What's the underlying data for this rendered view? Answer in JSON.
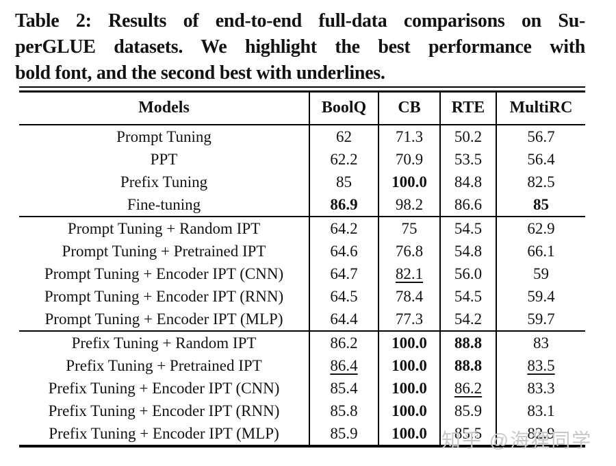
{
  "caption": {
    "lines": [
      "Table 2: Results of end-to-end full-data comparisons on Su-",
      "perGLUE datasets. We highlight the best performance with",
      "bold font, and the second best with underlines."
    ]
  },
  "table": {
    "columns": [
      "Models",
      "BoolQ",
      "CB",
      "RTE",
      "MultiRC"
    ],
    "groups": [
      {
        "rows": [
          {
            "model": "Prompt Tuning",
            "values": [
              {
                "text": "62",
                "style": "plain"
              },
              {
                "text": "71.3",
                "style": "plain"
              },
              {
                "text": "50.2",
                "style": "plain"
              },
              {
                "text": "56.7",
                "style": "plain"
              }
            ]
          },
          {
            "model": "PPT",
            "values": [
              {
                "text": "62.2",
                "style": "plain"
              },
              {
                "text": "70.9",
                "style": "plain"
              },
              {
                "text": "53.5",
                "style": "plain"
              },
              {
                "text": "56.4",
                "style": "plain"
              }
            ]
          },
          {
            "model": "Prefix Tuning",
            "values": [
              {
                "text": "85",
                "style": "plain"
              },
              {
                "text": "100.0",
                "style": "bold"
              },
              {
                "text": "84.8",
                "style": "plain"
              },
              {
                "text": "82.5",
                "style": "plain"
              }
            ]
          },
          {
            "model": "Fine-tuning",
            "values": [
              {
                "text": "86.9",
                "style": "bold"
              },
              {
                "text": "98.2",
                "style": "plain"
              },
              {
                "text": "86.6",
                "style": "plain"
              },
              {
                "text": "85",
                "style": "bold"
              }
            ]
          }
        ]
      },
      {
        "rows": [
          {
            "model": "Prompt Tuning + Random IPT",
            "values": [
              {
                "text": "64.2",
                "style": "plain"
              },
              {
                "text": "75",
                "style": "plain"
              },
              {
                "text": "54.5",
                "style": "plain"
              },
              {
                "text": "62.9",
                "style": "plain"
              }
            ]
          },
          {
            "model": "Prompt Tuning + Pretrained IPT",
            "values": [
              {
                "text": "64.6",
                "style": "plain"
              },
              {
                "text": "76.8",
                "style": "plain"
              },
              {
                "text": "54.8",
                "style": "plain"
              },
              {
                "text": "66.1",
                "style": "plain"
              }
            ]
          },
          {
            "model": "Prompt Tuning + Encoder IPT (CNN)",
            "values": [
              {
                "text": "64.7",
                "style": "plain"
              },
              {
                "text": "82.1",
                "style": "underline"
              },
              {
                "text": "56.0",
                "style": "plain"
              },
              {
                "text": "59",
                "style": "plain"
              }
            ]
          },
          {
            "model": "Prompt Tuning + Encoder IPT (RNN)",
            "values": [
              {
                "text": "64.5",
                "style": "plain"
              },
              {
                "text": "78.4",
                "style": "plain"
              },
              {
                "text": "54.5",
                "style": "plain"
              },
              {
                "text": "59.4",
                "style": "plain"
              }
            ]
          },
          {
            "model": "Prompt Tuning + Encoder IPT (MLP)",
            "values": [
              {
                "text": "64.4",
                "style": "plain"
              },
              {
                "text": "77.3",
                "style": "plain"
              },
              {
                "text": "54.2",
                "style": "plain"
              },
              {
                "text": "59.7",
                "style": "plain"
              }
            ]
          }
        ]
      },
      {
        "rows": [
          {
            "model": "Prefix Tuning + Random IPT",
            "values": [
              {
                "text": "86.2",
                "style": "plain"
              },
              {
                "text": "100.0",
                "style": "bold"
              },
              {
                "text": "88.8",
                "style": "bold"
              },
              {
                "text": "83",
                "style": "plain"
              }
            ]
          },
          {
            "model": "Prefix Tuning + Pretrained IPT",
            "values": [
              {
                "text": "86.4",
                "style": "underline"
              },
              {
                "text": "100.0",
                "style": "bold"
              },
              {
                "text": "88.8",
                "style": "bold"
              },
              {
                "text": "83.5",
                "style": "underline"
              }
            ]
          },
          {
            "model": "Prefix Tuning + Encoder IPT (CNN)",
            "values": [
              {
                "text": "85.4",
                "style": "plain"
              },
              {
                "text": "100.0",
                "style": "bold"
              },
              {
                "text": "86.2",
                "style": "underline"
              },
              {
                "text": "83.3",
                "style": "plain"
              }
            ]
          },
          {
            "model": "Prefix Tuning + Encoder IPT (RNN)",
            "values": [
              {
                "text": "85.8",
                "style": "plain"
              },
              {
                "text": "100.0",
                "style": "bold"
              },
              {
                "text": "85.9",
                "style": "plain"
              },
              {
                "text": "83.1",
                "style": "plain"
              }
            ]
          },
          {
            "model": "Prefix Tuning + Encoder IPT (MLP)",
            "values": [
              {
                "text": "85.9",
                "style": "plain"
              },
              {
                "text": "100.0",
                "style": "bold"
              },
              {
                "text": "85.5",
                "style": "plain"
              },
              {
                "text": "82.9",
                "style": "plain"
              }
            ]
          }
        ]
      }
    ]
  },
  "watermark": {
    "text": "知乎 @海狸同学",
    "color": "#c8c8c8"
  },
  "colors": {
    "text": "#121212",
    "rule": "#000000",
    "background": "#ffffff"
  }
}
